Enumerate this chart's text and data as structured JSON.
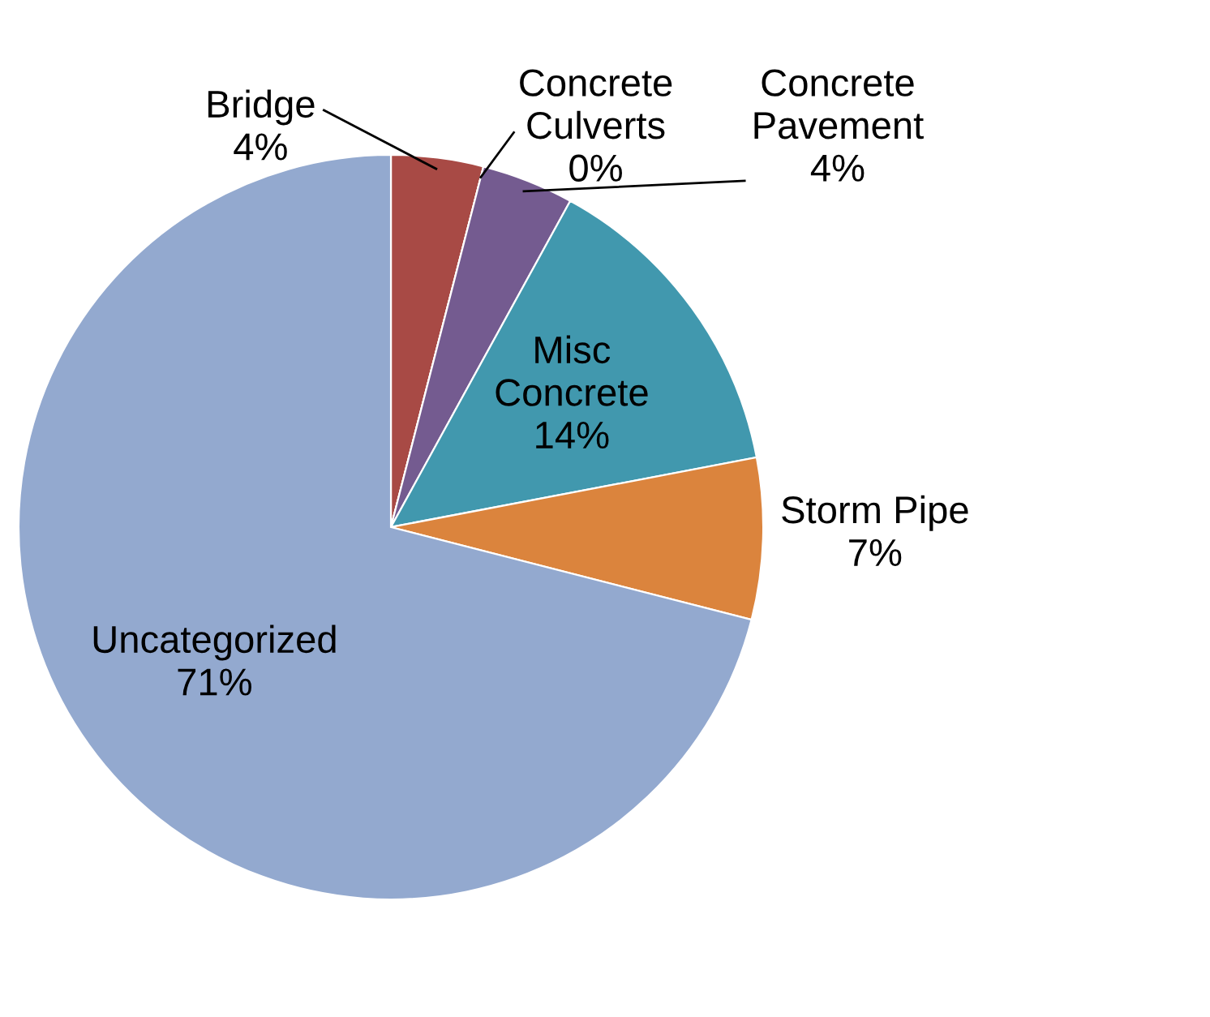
{
  "chart_data": {
    "type": "pie",
    "categories": [
      "Bridge",
      "Concrete Culverts",
      "Concrete Pavement",
      "Misc Concrete",
      "Storm Pipe",
      "Uncategorized"
    ],
    "values": [
      4,
      0,
      4,
      14,
      7,
      71
    ],
    "colors": [
      "#a84a45",
      "#8aa84a",
      "#745b90",
      "#4198ae",
      "#db843d",
      "#93a9cf"
    ],
    "value_labels": [
      "4%",
      "0%",
      "4%",
      "14%",
      "7%",
      "71%"
    ],
    "legend": false
  }
}
